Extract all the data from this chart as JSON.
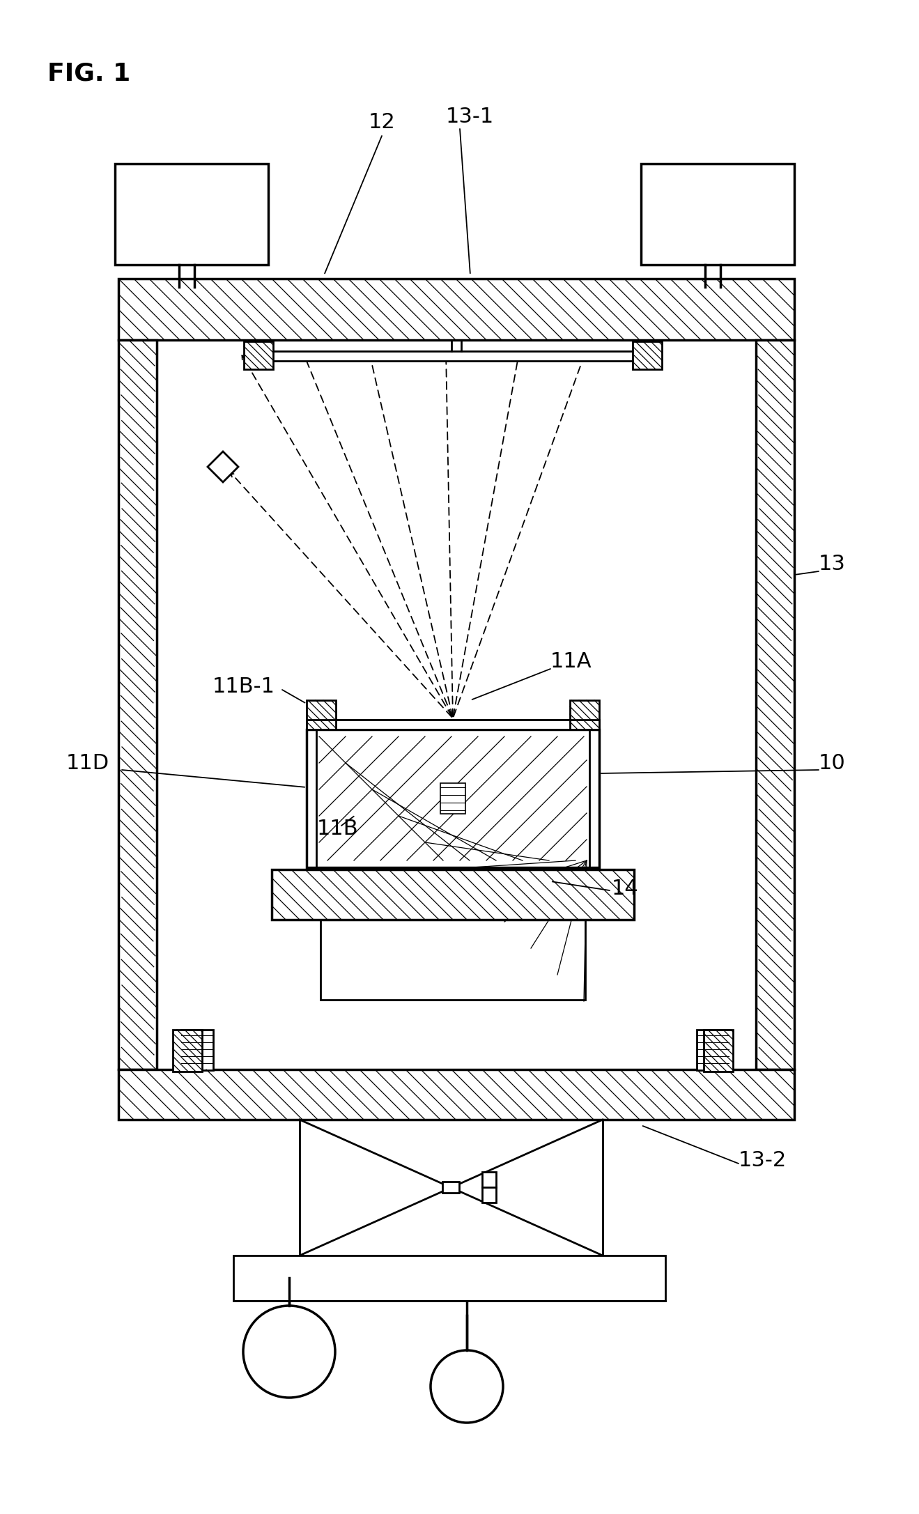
{
  "bg_color": "#ffffff",
  "line_color": "#000000",
  "labels": {
    "fig": "FIG. 1",
    "12": "12",
    "13_1": "13-1",
    "13": "13",
    "13_2": "13-2",
    "10": "10",
    "11A": "11A",
    "11B": "11B",
    "11B1": "11B-1",
    "11D": "11D",
    "14": "14"
  },
  "figsize": [
    13.19,
    21.73
  ],
  "dpi": 100,
  "xlim": [
    0,
    1319
  ],
  "ylim": [
    0,
    2173
  ]
}
